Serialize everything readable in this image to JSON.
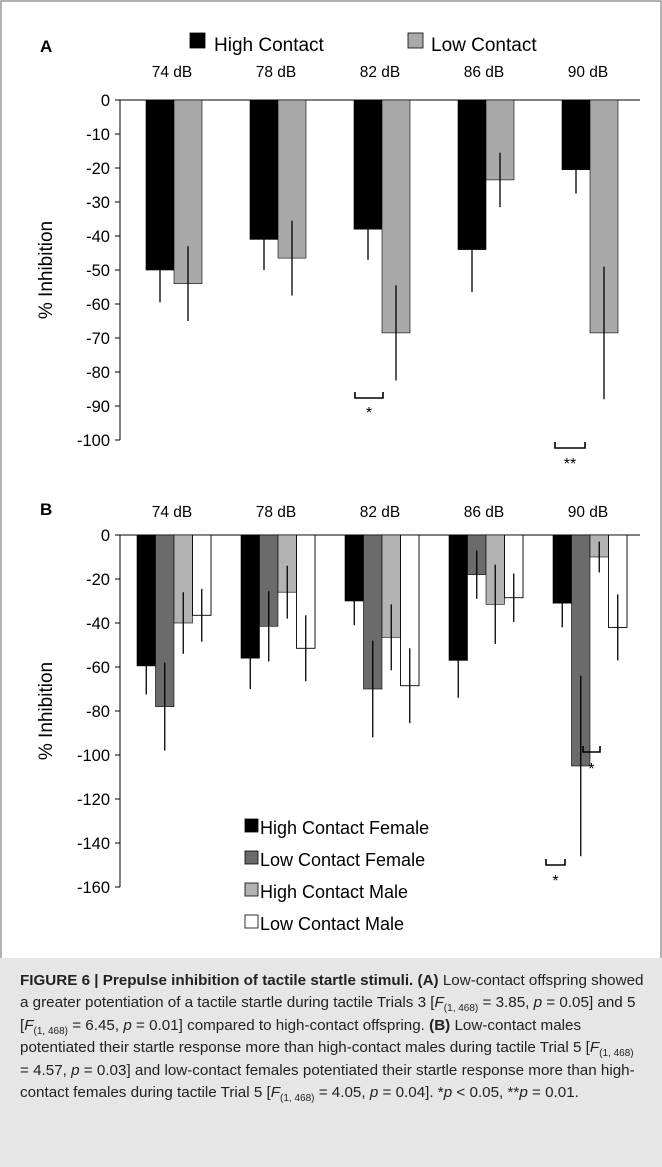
{
  "colors": {
    "high_contact": "#000000",
    "low_contact": "#a9a9a9",
    "high_contact_female": "#000000",
    "low_contact_female": "#6b6b6b",
    "high_contact_male": "#b3b3b3",
    "low_contact_male": "#ffffff",
    "caption_background": "#e6e6e6"
  },
  "chart_data": [
    {
      "panel": "A",
      "type": "bar",
      "orientation": "downward",
      "categories": [
        "74 dB",
        "78 dB",
        "82 dB",
        "86 dB",
        "90 dB"
      ],
      "ylabel": "% Inhibition",
      "ylim": [
        -100,
        0
      ],
      "yticks": [
        "0",
        "-10",
        "-20",
        "-30",
        "-40",
        "-50",
        "-60",
        "-70",
        "-80",
        "-90",
        "-100"
      ],
      "grid": false,
      "legend_position": "top",
      "series": [
        {
          "name": "High Contact",
          "color": "#000000",
          "values": [
            -50,
            -41,
            -38,
            -44,
            -20.5
          ],
          "error": [
            9.5,
            9,
            9,
            12.5,
            7
          ]
        },
        {
          "name": "Low Contact",
          "color": "#a9a9a9",
          "values": [
            -54,
            -46.5,
            -68.5,
            -23.5,
            -68.5
          ],
          "error": [
            11,
            11,
            14,
            8,
            19.5
          ]
        }
      ],
      "annotations": [
        {
          "category": "82 dB",
          "text": "*"
        },
        {
          "category": "90 dB",
          "text": "**"
        }
      ]
    },
    {
      "panel": "B",
      "type": "bar",
      "orientation": "downward",
      "categories": [
        "74 dB",
        "78 dB",
        "82 dB",
        "86 dB",
        "90 dB"
      ],
      "ylabel": "% Inhibition",
      "ylim": [
        -160,
        0
      ],
      "yticks": [
        "0",
        "-20",
        "-40",
        "-60",
        "-80",
        "-100",
        "-120",
        "-140",
        "-160"
      ],
      "grid": false,
      "legend_position": "bottom-center",
      "series": [
        {
          "name": "High Contact Female",
          "color": "#000000",
          "values": [
            -59.5,
            -56,
            -30,
            -57,
            -31
          ],
          "error": [
            13,
            14,
            11,
            17,
            11
          ]
        },
        {
          "name": "Low Contact Female",
          "color": "#6b6b6b",
          "values": [
            -78,
            -41.5,
            -70,
            -18,
            -105
          ],
          "error": [
            20,
            16,
            22,
            11,
            41
          ]
        },
        {
          "name": "High Contact Male",
          "color": "#b3b3b3",
          "values": [
            -40,
            -26,
            -46.5,
            -31.5,
            -10
          ],
          "error": [
            14,
            12,
            15,
            18,
            7
          ]
        },
        {
          "name": "Low Contact Male",
          "color": "#ffffff",
          "values": [
            -36.5,
            -51.5,
            -68.5,
            -28.5,
            -42
          ],
          "error": [
            12,
            15,
            17,
            11,
            15
          ]
        }
      ],
      "annotations": [
        {
          "category": "90 dB",
          "pair": "Low Contact Female",
          "text": "*"
        },
        {
          "category": "90 dB",
          "pair": "Low Contact Male",
          "text": "*"
        }
      ]
    }
  ],
  "caption": {
    "figure_label": "FIGURE 6 | Prepulse inhibition of tactile startle stimuli.",
    "a_label": "(A)",
    "a_text_1": " Low-contact offspring showed a greater potentiation of a tactile startle during tactile Trials 3 [",
    "stat_1": "= 3.85,",
    "p_1": "= 0.05] and 5 [",
    "stat_2": "= 6.45,",
    "p_2": "= 0.01] compared to high-contact offspring.",
    "b_label": "(B)",
    "b_text_1": " Low-contact males potentiated their startle response more than high-contact males during tactile Trial 5 [",
    "stat_3": "= 4.57,",
    "p_3": "= 0.03] and low-contact females potentiated their startle response more than high-contact females during tactile Trial 5 [",
    "stat_4": "= 4.05,",
    "p_4": "= 0.04]. *",
    "p_5": "< 0.05, **",
    "p_6": "= 0.01.",
    "f_symbol": "F",
    "p_symbol": "p",
    "df": "(1, 468)"
  }
}
